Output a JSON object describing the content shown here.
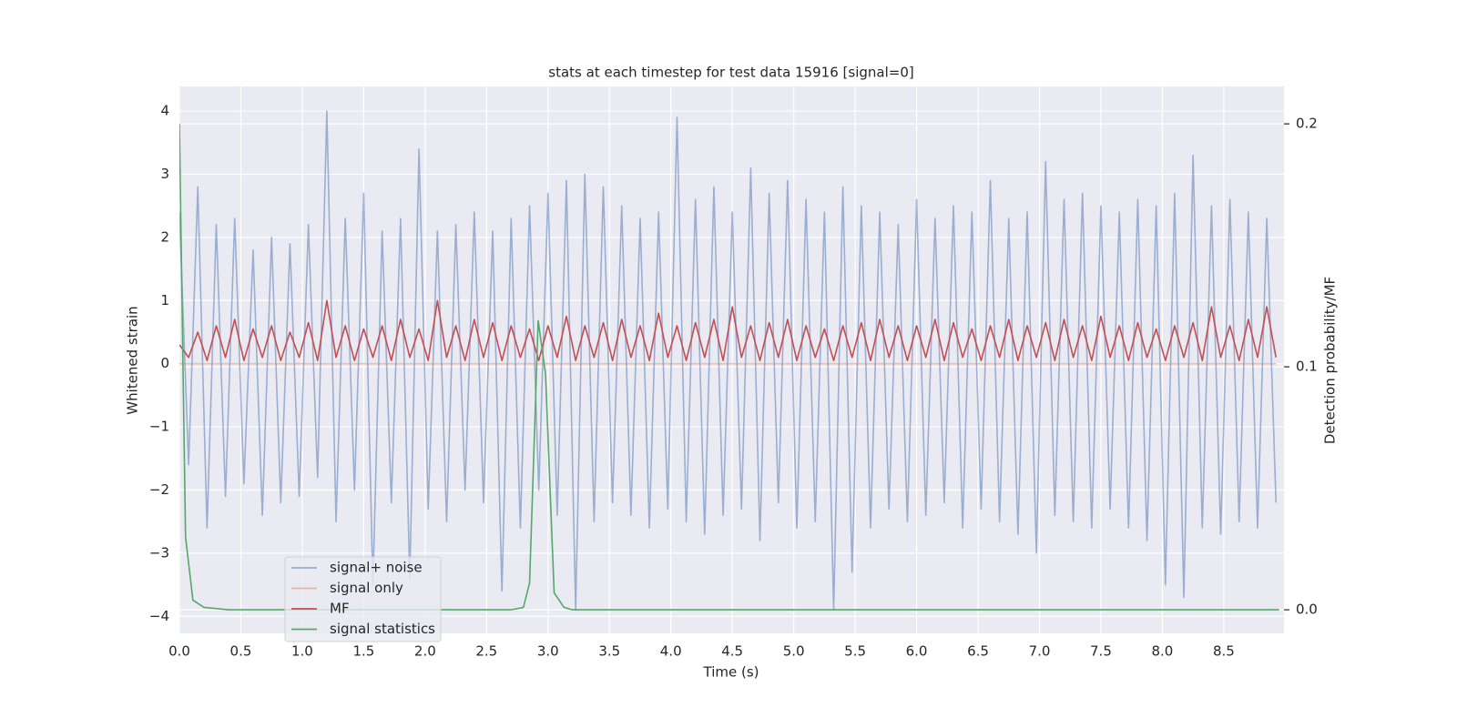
{
  "chart_data": {
    "type": "line",
    "title": "stats at each timestep for test data 15916 [signal=0]",
    "xlabel": "Time (s)",
    "ylabel": "Whitened strain",
    "y2label": "Detection probability/MF",
    "xlim": [
      0,
      8.99
    ],
    "ylim": [
      -4.27,
      4.39
    ],
    "y2lim": [
      -0.0097,
      0.2154
    ],
    "xticks": [
      {
        "value": 0,
        "label": "0.0"
      },
      0.5,
      {
        "value": 1,
        "label": "1.0"
      },
      1.5,
      {
        "value": 2,
        "label": "2.0"
      },
      2.5,
      {
        "value": 3,
        "label": "3.0"
      },
      3.5,
      {
        "value": 4,
        "label": "4.0"
      },
      4.5,
      {
        "value": 5,
        "label": "5.0"
      },
      5.5,
      {
        "value": 6,
        "label": "6.0"
      },
      6.5,
      {
        "value": 7,
        "label": "7.0"
      },
      7.5,
      {
        "value": 8,
        "label": "8.0"
      },
      8.5
    ],
    "yticks": [
      {
        "value": -4,
        "label": "−4"
      },
      {
        "value": -3,
        "label": "−3"
      },
      {
        "value": -2,
        "label": "−2"
      },
      {
        "value": -1,
        "label": "−1"
      },
      0,
      1,
      2,
      3,
      4
    ],
    "y2ticks": [
      {
        "value": 0,
        "label": "0.0"
      },
      0.1,
      0.2
    ],
    "grid": true,
    "legend": "lower left",
    "x": [
      0,
      0.075,
      0.15,
      0.225,
      0.3,
      0.375,
      0.45,
      0.525,
      0.6,
      0.675,
      0.75,
      0.825,
      0.9,
      0.975,
      1.05,
      1.125,
      1.2,
      1.275,
      1.35,
      1.425,
      1.5,
      1.575,
      1.65,
      1.725,
      1.8,
      1.875,
      1.95,
      2.025,
      2.1,
      2.175,
      2.25,
      2.325,
      2.4,
      2.475,
      2.55,
      2.625,
      2.7,
      2.775,
      2.85,
      2.925,
      3,
      3.075,
      3.15,
      3.225,
      3.3,
      3.375,
      3.45,
      3.525,
      3.6,
      3.675,
      3.75,
      3.825,
      3.9,
      3.975,
      4.05,
      4.125,
      4.2,
      4.275,
      4.35,
      4.425,
      4.5,
      4.575,
      4.65,
      4.725,
      4.8,
      4.875,
      4.95,
      5.025,
      5.1,
      5.175,
      5.25,
      5.325,
      5.4,
      5.475,
      5.55,
      5.625,
      5.7,
      5.775,
      5.85,
      5.925,
      6,
      6.075,
      6.15,
      6.225,
      6.3,
      6.375,
      6.45,
      6.525,
      6.6,
      6.675,
      6.75,
      6.825,
      6.9,
      6.975,
      7.05,
      7.125,
      7.2,
      7.275,
      7.35,
      7.425,
      7.5,
      7.575,
      7.65,
      7.725,
      7.8,
      7.875,
      7.95,
      8.025,
      8.1,
      8.175,
      8.25,
      8.325,
      8.4,
      8.475,
      8.55,
      8.625,
      8.7,
      8.775,
      8.85,
      8.925
    ],
    "series": [
      {
        "name": "signal+ noise",
        "color": "#4c72b0",
        "opacity": 0.5,
        "values": [
          2.4,
          -1.6,
          2.8,
          -2.6,
          2.2,
          -2.1,
          2.3,
          -1.9,
          1.8,
          -2.4,
          2.0,
          -2.2,
          1.9,
          -2.1,
          2.2,
          -1.8,
          4.0,
          -2.5,
          2.3,
          -2.0,
          2.7,
          -3.5,
          2.1,
          -2.2,
          2.3,
          -3.4,
          3.4,
          -2.3,
          2.1,
          -2.5,
          2.2,
          -2.0,
          2.4,
          -2.2,
          2.1,
          -3.6,
          2.3,
          -2.6,
          2.5,
          -2.0,
          2.7,
          -2.4,
          2.9,
          -3.9,
          3.0,
          -2.5,
          2.8,
          -2.2,
          2.5,
          -2.4,
          2.3,
          -2.6,
          2.4,
          -2.3,
          3.9,
          -2.5,
          2.6,
          -2.7,
          2.8,
          -2.4,
          2.4,
          -2.3,
          3.1,
          -2.8,
          2.7,
          -2.2,
          2.9,
          -2.6,
          2.6,
          -2.5,
          2.4,
          -3.9,
          2.8,
          -3.3,
          2.5,
          -2.6,
          2.4,
          -2.3,
          2.2,
          -2.5,
          2.6,
          -2.4,
          2.3,
          -2.2,
          2.5,
          -2.6,
          2.4,
          -2.3,
          2.9,
          -2.5,
          2.3,
          -2.7,
          2.4,
          -3.0,
          3.2,
          -2.4,
          2.6,
          -2.5,
          2.7,
          -2.6,
          2.5,
          -2.3,
          2.4,
          -2.6,
          2.6,
          -2.8,
          2.5,
          -3.5,
          2.7,
          -3.7,
          3.3,
          -2.6,
          2.5,
          -2.7,
          2.6,
          -2.5,
          2.4,
          -2.6,
          2.3,
          -2.2
        ]
      },
      {
        "name": "signal only",
        "color": "#dd8452",
        "opacity": 0.5,
        "x": [
          0,
          8.925
        ],
        "values": [
          0,
          0
        ]
      },
      {
        "name": "MF",
        "color": "#c44e52",
        "opacity": 1,
        "values": [
          0.3,
          0.1,
          0.5,
          0.05,
          0.6,
          0.1,
          0.7,
          0.05,
          0.55,
          0.1,
          0.6,
          0.05,
          0.5,
          0.1,
          0.65,
          0.05,
          1.0,
          0.1,
          0.6,
          0.05,
          0.55,
          0.1,
          0.6,
          0.05,
          0.7,
          0.1,
          0.55,
          0.05,
          1.0,
          0.1,
          0.6,
          0.05,
          0.7,
          0.1,
          0.65,
          0.05,
          0.6,
          0.1,
          0.55,
          0.05,
          0.6,
          0.1,
          0.75,
          0.05,
          0.6,
          0.1,
          0.65,
          0.05,
          0.7,
          0.1,
          0.6,
          0.05,
          0.8,
          0.1,
          0.6,
          0.05,
          0.65,
          0.1,
          0.7,
          0.05,
          0.9,
          0.1,
          0.6,
          0.05,
          0.65,
          0.1,
          0.7,
          0.05,
          0.6,
          0.1,
          0.55,
          0.05,
          0.6,
          0.1,
          0.65,
          0.05,
          0.7,
          0.1,
          0.6,
          0.05,
          0.6,
          0.1,
          0.7,
          0.05,
          0.65,
          0.1,
          0.55,
          0.05,
          0.6,
          0.1,
          0.7,
          0.05,
          0.6,
          0.1,
          0.65,
          0.05,
          0.7,
          0.1,
          0.6,
          0.05,
          0.75,
          0.1,
          0.6,
          0.05,
          0.65,
          0.1,
          0.55,
          0.05,
          0.6,
          0.1,
          0.65,
          0.05,
          0.9,
          0.1,
          0.6,
          0.05,
          0.7,
          0.1,
          0.9,
          0.1
        ]
      },
      {
        "name": "signal statistics",
        "color": "#55a868",
        "opacity": 1,
        "axis": "y2",
        "x": [
          0,
          0.05,
          0.11,
          0.2,
          0.4,
          1.0,
          2.0,
          2.7,
          2.8,
          2.85,
          2.92,
          2.98,
          3.05,
          3.13,
          3.2,
          5.0,
          7.0,
          8.95
        ],
        "values": [
          0.2,
          0.03,
          0.004,
          0.001,
          0,
          0,
          0,
          0,
          0.001,
          0.011,
          0.119,
          0.097,
          0.007,
          0.001,
          0,
          0,
          0,
          0
        ]
      }
    ]
  }
}
